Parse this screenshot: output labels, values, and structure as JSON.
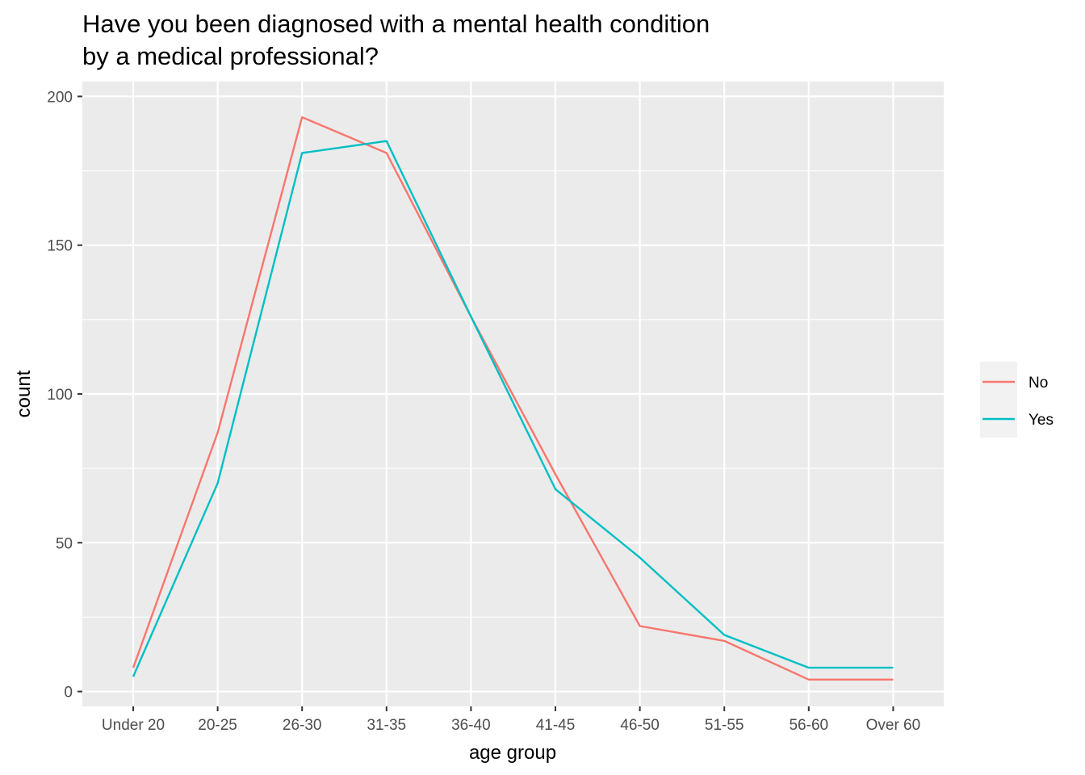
{
  "chart_data": {
    "type": "line",
    "title_line1": "Have you been diagnosed with a mental health condition",
    "title_line2": "by a medical professional?",
    "xlabel": "age group",
    "ylabel": "count",
    "categories": [
      "Under 20",
      "20-25",
      "26-30",
      "31-35",
      "36-40",
      "41-45",
      "46-50",
      "51-55",
      "56-60",
      "Over 60"
    ],
    "ylim": [
      -5,
      205
    ],
    "yticks": [
      0,
      50,
      100,
      150,
      200
    ],
    "grid": true,
    "legend_position": "right",
    "series": [
      {
        "name": "No",
        "color": "#F8766D",
        "values": [
          8,
          87,
          193,
          181,
          126,
          73,
          22,
          17,
          4,
          4
        ]
      },
      {
        "name": "Yes",
        "color": "#00BFC4",
        "values": [
          5,
          70,
          181,
          185,
          126,
          68,
          45,
          19,
          8,
          8
        ]
      }
    ]
  }
}
